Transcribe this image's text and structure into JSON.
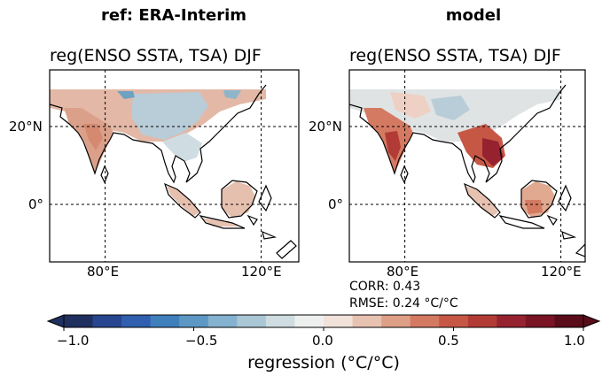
{
  "chart_data": [
    {
      "type": "heatmap",
      "column_title": "ref: ERA-Interim",
      "title": "reg(ENSO SSTA, TSA) DJF",
      "x_ticks": [
        "80°E",
        "120°E"
      ],
      "x_tick_values": [
        80,
        120
      ],
      "y_ticks": [
        "20°N",
        "0°"
      ],
      "y_tick_values": [
        20,
        0
      ],
      "lon_range": [
        60,
        135
      ],
      "lat_range": [
        -15,
        35
      ],
      "grid": true,
      "grid_style": "dashed"
    },
    {
      "type": "heatmap",
      "column_title": "model",
      "title": "reg(ENSO SSTA, TSA) DJF",
      "x_ticks": [
        "80°E",
        "120°E"
      ],
      "x_tick_values": [
        80,
        120
      ],
      "y_ticks": [
        "20°N",
        "0°"
      ],
      "y_tick_values": [
        20,
        0
      ],
      "lon_range": [
        60,
        135
      ],
      "lat_range": [
        -15,
        35
      ],
      "grid": true,
      "grid_style": "dashed",
      "stats": {
        "corr_text": "CORR: 0.43",
        "rmse_text": "RMSE: 0.24 °C/°C"
      }
    }
  ],
  "colorbar": {
    "label": "regression (°C/°C)",
    "ticks": [
      "−1.0",
      "−0.5",
      "0.0",
      "0.5",
      "1.0"
    ],
    "tick_values": [
      -1.0,
      -0.5,
      0.0,
      0.5,
      1.0
    ],
    "range": [
      -1.0,
      1.0
    ],
    "extend": "both",
    "colors": [
      "#1f2f5e",
      "#27468f",
      "#2f5fae",
      "#3f7fbb",
      "#5d98c5",
      "#84b2cf",
      "#aac7d6",
      "#cfdde3",
      "#eef0f0",
      "#f1e2da",
      "#e8c2b1",
      "#de9f87",
      "#d47a62",
      "#c75745",
      "#b33b36",
      "#962230",
      "#7a1425",
      "#5a0c1a"
    ]
  }
}
